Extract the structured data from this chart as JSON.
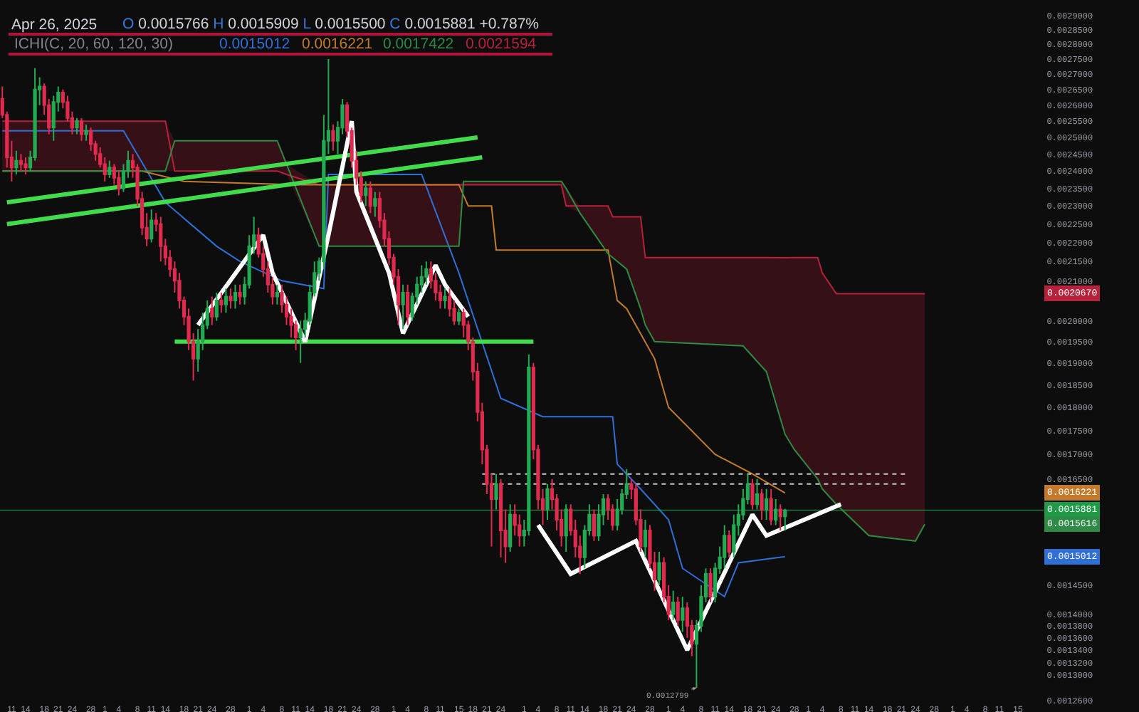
{
  "chart_data": {
    "type": "candlestick",
    "title": "Apr 26, 2025",
    "subtitle": "O 0.0015766 H 0.0015909 L 0.0015500 C 0.0015881 +0.787%",
    "legend_title": "ICHI(C, 20, 60, 120, 30)",
    "annotations": [
      "0.0015012",
      "0.0016221",
      "0.0017422",
      "0.0021594",
      {
        "text": "0.0012799",
        "x": "2025-04-07",
        "y": 0.0012799
      },
      "0.0015012",
      "0.0016221",
      "0.0015616",
      "0.0020670"
    ],
    "log": true,
    "xlim": [
      "2024-11-08T12:00",
      "2025-06-20T12:00"
    ],
    "ylim": [
      0.00126,
      0.002955
    ],
    "yticks": [
      {
        "value": 0.0029,
        "label": "0.0029000"
      },
      {
        "value": 0.00285,
        "label": "0.0028500"
      },
      {
        "value": 0.0028,
        "label": "0.0028000"
      },
      {
        "value": 0.00275,
        "label": "0.0027500"
      },
      {
        "value": 0.0027,
        "label": "0.0027000"
      },
      {
        "value": 0.00265,
        "label": "0.0026500"
      },
      {
        "value": 0.0026,
        "label": "0.0026000"
      },
      {
        "value": 0.00255,
        "label": "0.0025500"
      },
      {
        "value": 0.0025,
        "label": "0.0025000"
      },
      {
        "value": 0.00245,
        "label": "0.0024500"
      },
      {
        "value": 0.0024,
        "label": "0.0024000"
      },
      {
        "value": 0.00235,
        "label": "0.0023500"
      },
      {
        "value": 0.0023,
        "label": "0.0023000"
      },
      {
        "value": 0.00225,
        "label": "0.0022500"
      },
      {
        "value": 0.0022,
        "label": "0.0022000"
      },
      {
        "value": 0.00215,
        "label": "0.0021500"
      },
      {
        "value": 0.0021,
        "label": "0.0021000"
      },
      {
        "value": 0.002,
        "label": "0.0020000"
      },
      {
        "value": 0.00195,
        "label": "0.0019500"
      },
      {
        "value": 0.0019,
        "label": "0.0019000"
      },
      {
        "value": 0.00185,
        "label": "0.0018500"
      },
      {
        "value": 0.0018,
        "label": "0.0018000"
      },
      {
        "value": 0.00175,
        "label": "0.0017500"
      },
      {
        "value": 0.0017,
        "label": "0.0017000"
      },
      {
        "value": 0.00165,
        "label": "0.0016500"
      },
      {
        "value": 0.00145,
        "label": "0.0014500"
      },
      {
        "value": 0.0014,
        "label": "0.0014000"
      },
      {
        "value": 0.00138,
        "label": "0.0013800"
      },
      {
        "value": 0.00136,
        "label": "0.0013600"
      },
      {
        "value": 0.00134,
        "label": "0.0013400"
      },
      {
        "value": 0.00132,
        "label": "0.0013200"
      },
      {
        "value": 0.0013,
        "label": "0.0013000"
      },
      {
        "value": 0.00126,
        "label": "0.0012600"
      }
    ],
    "xticks": [
      {
        "value": "2024-11-11",
        "label": "11"
      },
      {
        "value": "2024-11-14",
        "label": "14"
      },
      {
        "value": "2024-11-18",
        "label": "18"
      },
      {
        "value": "2024-11-21",
        "label": "21"
      },
      {
        "value": "2024-11-24",
        "label": "24"
      },
      {
        "value": "2024-11-28",
        "label": "28"
      },
      {
        "value": "2024-12-01",
        "label": "1"
      },
      {
        "value": "2024-12-04",
        "label": "4"
      },
      {
        "value": "2024-12-08",
        "label": "8"
      },
      {
        "value": "2024-12-11",
        "label": "11"
      },
      {
        "value": "2024-12-14",
        "label": "14"
      },
      {
        "value": "2024-12-18",
        "label": "18"
      },
      {
        "value": "2024-12-21",
        "label": "21"
      },
      {
        "value": "2024-12-24",
        "label": "24"
      },
      {
        "value": "2024-12-28",
        "label": "28"
      },
      {
        "value": "2025-01-01",
        "label": "1"
      },
      {
        "value": "2025-01-04",
        "label": "4"
      },
      {
        "value": "2025-01-08",
        "label": "8"
      },
      {
        "value": "2025-01-11",
        "label": "11"
      },
      {
        "value": "2025-01-14",
        "label": "14"
      },
      {
        "value": "2025-01-18",
        "label": "18"
      },
      {
        "value": "2025-01-21",
        "label": "21"
      },
      {
        "value": "2025-01-24",
        "label": "24"
      },
      {
        "value": "2025-01-28",
        "label": "28"
      },
      {
        "value": "2025-02-01",
        "label": "1"
      },
      {
        "value": "2025-02-04",
        "label": "4"
      },
      {
        "value": "2025-02-08",
        "label": "8"
      },
      {
        "value": "2025-02-11",
        "label": "11"
      },
      {
        "value": "2025-02-15",
        "label": "15"
      },
      {
        "value": "2025-02-18",
        "label": "18"
      },
      {
        "value": "2025-02-21",
        "label": "21"
      },
      {
        "value": "2025-02-24",
        "label": "24"
      },
      {
        "value": "2025-03-01",
        "label": "1"
      },
      {
        "value": "2025-03-04",
        "label": "4"
      },
      {
        "value": "2025-03-08",
        "label": "8"
      },
      {
        "value": "2025-03-11",
        "label": "11"
      },
      {
        "value": "2025-03-14",
        "label": "14"
      },
      {
        "value": "2025-03-18",
        "label": "18"
      },
      {
        "value": "2025-03-21",
        "label": "21"
      },
      {
        "value": "2025-03-24",
        "label": "24"
      },
      {
        "value": "2025-03-28",
        "label": "28"
      },
      {
        "value": "2025-04-01",
        "label": "1"
      },
      {
        "value": "2025-04-04",
        "label": "4"
      },
      {
        "value": "2025-04-08",
        "label": "8"
      },
      {
        "value": "2025-04-11",
        "label": "11"
      },
      {
        "value": "2025-04-14",
        "label": "14"
      },
      {
        "value": "2025-04-18",
        "label": "18"
      },
      {
        "value": "2025-04-21",
        "label": "21"
      },
      {
        "value": "2025-04-24",
        "label": "24"
      },
      {
        "value": "2025-04-28",
        "label": "28"
      },
      {
        "value": "2025-05-01",
        "label": "1"
      },
      {
        "value": "2025-05-04",
        "label": "4"
      },
      {
        "value": "2025-05-08",
        "label": "8"
      },
      {
        "value": "2025-05-11",
        "label": "11"
      },
      {
        "value": "2025-05-14",
        "label": "14"
      },
      {
        "value": "2025-05-18",
        "label": "18"
      },
      {
        "value": "2025-05-21",
        "label": "21"
      },
      {
        "value": "2025-05-24",
        "label": "24"
      },
      {
        "value": "2025-05-28",
        "label": "28"
      },
      {
        "value": "2025-06-01",
        "label": "1"
      },
      {
        "value": "2025-06-04",
        "label": "4"
      },
      {
        "value": "2025-06-08",
        "label": "8"
      },
      {
        "value": "2025-06-11",
        "label": "11"
      },
      {
        "value": "2025-06-15",
        "label": "15"
      }
    ],
    "x": [
      "2024-11-09",
      "2024-11-10",
      "2024-11-11",
      "2024-11-12",
      "2024-11-13",
      "2024-11-14",
      "2024-11-15",
      "2024-11-16",
      "2024-11-17",
      "2024-11-18",
      "2024-11-19",
      "2024-11-20",
      "2024-11-21",
      "2024-11-22",
      "2024-11-23",
      "2024-11-24",
      "2024-11-25",
      "2024-11-26",
      "2024-11-27",
      "2024-11-28",
      "2024-11-29",
      "2024-11-30",
      "2024-12-01",
      "2024-12-02",
      "2024-12-03",
      "2024-12-04",
      "2024-12-05",
      "2024-12-06",
      "2024-12-07",
      "2024-12-08",
      "2024-12-09",
      "2024-12-10",
      "2024-12-11",
      "2024-12-12",
      "2024-12-13",
      "2024-12-14",
      "2024-12-15",
      "2024-12-16",
      "2024-12-17",
      "2024-12-18",
      "2024-12-19",
      "2024-12-20",
      "2024-12-21",
      "2024-12-22",
      "2024-12-23",
      "2024-12-24",
      "2024-12-25",
      "2024-12-26",
      "2024-12-27",
      "2024-12-28",
      "2024-12-29",
      "2024-12-30",
      "2024-12-31",
      "2025-01-01",
      "2025-01-02",
      "2025-01-03",
      "2025-01-04",
      "2025-01-05",
      "2025-01-06",
      "2025-01-07",
      "2025-01-08",
      "2025-01-09",
      "2025-01-10",
      "2025-01-11",
      "2025-01-12",
      "2025-01-13",
      "2025-01-14",
      "2025-01-15",
      "2025-01-16",
      "2025-01-17",
      "2025-01-18",
      "2025-01-19",
      "2025-01-20",
      "2025-01-21",
      "2025-01-22",
      "2025-01-23",
      "2025-01-24",
      "2025-01-25",
      "2025-01-26",
      "2025-01-27",
      "2025-01-28",
      "2025-01-29",
      "2025-01-30",
      "2025-01-31",
      "2025-02-01",
      "2025-02-02",
      "2025-02-03",
      "2025-02-04",
      "2025-02-05",
      "2025-02-06",
      "2025-02-07",
      "2025-02-08",
      "2025-02-09",
      "2025-02-10",
      "2025-02-11",
      "2025-02-12",
      "2025-02-13",
      "2025-02-14",
      "2025-02-15",
      "2025-02-16",
      "2025-02-17",
      "2025-02-18",
      "2025-02-19",
      "2025-02-20",
      "2025-02-21",
      "2025-02-22",
      "2025-02-23",
      "2025-02-24",
      "2025-02-25",
      "2025-02-26",
      "2025-02-27",
      "2025-02-28",
      "2025-03-01",
      "2025-03-02",
      "2025-03-03",
      "2025-03-04",
      "2025-03-05",
      "2025-03-06",
      "2025-03-07",
      "2025-03-08",
      "2025-03-09",
      "2025-03-10",
      "2025-03-11",
      "2025-03-12",
      "2025-03-13",
      "2025-03-14",
      "2025-03-15",
      "2025-03-16",
      "2025-03-17",
      "2025-03-18",
      "2025-03-19",
      "2025-03-20",
      "2025-03-21",
      "2025-03-22",
      "2025-03-23",
      "2025-03-24",
      "2025-03-25",
      "2025-03-26",
      "2025-03-27",
      "2025-03-28",
      "2025-03-29",
      "2025-03-30",
      "2025-03-31",
      "2025-04-01",
      "2025-04-02",
      "2025-04-03",
      "2025-04-04",
      "2025-04-05",
      "2025-04-06",
      "2025-04-07",
      "2025-04-08",
      "2025-04-09",
      "2025-04-10",
      "2025-04-11",
      "2025-04-12",
      "2025-04-13",
      "2025-04-14",
      "2025-04-15",
      "2025-04-16",
      "2025-04-17",
      "2025-04-18",
      "2025-04-19",
      "2025-04-20",
      "2025-04-21",
      "2025-04-22",
      "2025-04-23",
      "2025-04-24",
      "2025-04-25",
      "2025-04-26"
    ],
    "ohlc": [
      [
        0.00262,
        0.00266,
        0.00256,
        0.00257
      ],
      [
        0.00257,
        0.00258,
        0.00241,
        0.00244
      ],
      [
        0.00244,
        0.00249,
        0.00237,
        0.00241
      ],
      [
        0.00241,
        0.00246,
        0.00239,
        0.00243
      ],
      [
        0.00243,
        0.00245,
        0.0024,
        0.00242
      ],
      [
        0.00242,
        0.00244,
        0.00239,
        0.00241
      ],
      [
        0.00241,
        0.00246,
        0.0024,
        0.00244
      ],
      [
        0.00244,
        0.00272,
        0.00243,
        0.00265
      ],
      [
        0.00265,
        0.00269,
        0.0026,
        0.00266
      ],
      [
        0.00266,
        0.00267,
        0.00257,
        0.0026
      ],
      [
        0.0026,
        0.00262,
        0.00251,
        0.00253
      ],
      [
        0.00253,
        0.00263,
        0.00249,
        0.00261
      ],
      [
        0.00261,
        0.00266,
        0.00258,
        0.00264
      ],
      [
        0.00264,
        0.00265,
        0.00259,
        0.00261
      ],
      [
        0.00261,
        0.00263,
        0.00255,
        0.00256
      ],
      [
        0.00256,
        0.00258,
        0.00251,
        0.00253
      ],
      [
        0.00253,
        0.00256,
        0.00251,
        0.00255
      ],
      [
        0.00255,
        0.00256,
        0.00249,
        0.00251
      ],
      [
        0.00251,
        0.00254,
        0.00249,
        0.00252
      ],
      [
        0.00252,
        0.00253,
        0.00246,
        0.00248
      ],
      [
        0.00248,
        0.00249,
        0.00243,
        0.00245
      ],
      [
        0.00245,
        0.00247,
        0.00241,
        0.00242
      ],
      [
        0.00242,
        0.00244,
        0.00237,
        0.00239
      ],
      [
        0.00239,
        0.00243,
        0.00238,
        0.00241
      ],
      [
        0.00241,
        0.00242,
        0.00236,
        0.00238
      ],
      [
        0.00238,
        0.0024,
        0.00233,
        0.00235
      ],
      [
        0.00235,
        0.00242,
        0.00234,
        0.0024
      ],
      [
        0.0024,
        0.00246,
        0.00238,
        0.00243
      ],
      [
        0.00243,
        0.00245,
        0.00238,
        0.00241
      ],
      [
        0.00241,
        0.00242,
        0.0023,
        0.00232
      ],
      [
        0.00232,
        0.00234,
        0.00222,
        0.00224
      ],
      [
        0.00224,
        0.00228,
        0.00219,
        0.00221
      ],
      [
        0.00221,
        0.00229,
        0.0022,
        0.00226
      ],
      [
        0.00226,
        0.00228,
        0.00223,
        0.00225
      ],
      [
        0.00225,
        0.00227,
        0.00215,
        0.00219
      ],
      [
        0.00219,
        0.00221,
        0.00214,
        0.00216
      ],
      [
        0.00216,
        0.00218,
        0.00211,
        0.00213
      ],
      [
        0.00213,
        0.00215,
        0.00207,
        0.0021
      ],
      [
        0.0021,
        0.00212,
        0.00203,
        0.00205
      ],
      [
        0.00205,
        0.00206,
        0.00199,
        0.00201
      ],
      [
        0.00201,
        0.00203,
        0.00193,
        0.00195
      ],
      [
        0.00195,
        0.00197,
        0.00186,
        0.00191
      ],
      [
        0.00191,
        0.00198,
        0.00188,
        0.00195
      ],
      [
        0.00195,
        0.00202,
        0.00193,
        0.00199
      ],
      [
        0.00199,
        0.00205,
        0.00198,
        0.00203
      ],
      [
        0.00203,
        0.00206,
        0.00199,
        0.00201
      ],
      [
        0.00201,
        0.00207,
        0.002,
        0.00205
      ],
      [
        0.00205,
        0.00207,
        0.00202,
        0.00204
      ],
      [
        0.00204,
        0.00208,
        0.00202,
        0.00206
      ],
      [
        0.00206,
        0.00208,
        0.00203,
        0.00205
      ],
      [
        0.00205,
        0.00209,
        0.00203,
        0.00207
      ],
      [
        0.00207,
        0.00209,
        0.00204,
        0.00206
      ],
      [
        0.00206,
        0.00211,
        0.00204,
        0.00209
      ],
      [
        0.00209,
        0.00222,
        0.00208,
        0.00219
      ],
      [
        0.00219,
        0.00227,
        0.00217,
        0.00222
      ],
      [
        0.00222,
        0.00224,
        0.00216,
        0.00217
      ],
      [
        0.00217,
        0.00219,
        0.00211,
        0.00213
      ],
      [
        0.00213,
        0.00215,
        0.00207,
        0.00209
      ],
      [
        0.00209,
        0.00211,
        0.00204,
        0.00206
      ],
      [
        0.00206,
        0.00209,
        0.00204,
        0.00207
      ],
      [
        0.00207,
        0.00209,
        0.00202,
        0.00204
      ],
      [
        0.00204,
        0.00206,
        0.00199,
        0.00201
      ],
      [
        0.00201,
        0.00203,
        0.00196,
        0.00199
      ],
      [
        0.00199,
        0.002,
        0.00193,
        0.00196
      ],
      [
        0.00196,
        0.002,
        0.0019,
        0.00198
      ],
      [
        0.00198,
        0.00202,
        0.00196,
        0.002
      ],
      [
        0.002,
        0.00209,
        0.00199,
        0.00207
      ],
      [
        0.00207,
        0.00215,
        0.00206,
        0.00212
      ],
      [
        0.00212,
        0.00216,
        0.0021,
        0.00215
      ],
      [
        0.00215,
        0.00257,
        0.00213,
        0.00249
      ],
      [
        0.00249,
        0.00275,
        0.00245,
        0.00252
      ],
      [
        0.00252,
        0.00254,
        0.00246,
        0.00249
      ],
      [
        0.00249,
        0.00255,
        0.00245,
        0.00253
      ],
      [
        0.00253,
        0.00262,
        0.00251,
        0.0026
      ],
      [
        0.0026,
        0.00261,
        0.0025,
        0.00252
      ],
      [
        0.00252,
        0.00253,
        0.00241,
        0.00243
      ],
      [
        0.00243,
        0.00246,
        0.00236,
        0.00238
      ],
      [
        0.00238,
        0.0024,
        0.00231,
        0.00233
      ],
      [
        0.00233,
        0.00237,
        0.0023,
        0.00235
      ],
      [
        0.00235,
        0.00237,
        0.00228,
        0.0023
      ],
      [
        0.0023,
        0.00234,
        0.00227,
        0.00232
      ],
      [
        0.00232,
        0.00234,
        0.00224,
        0.00226
      ],
      [
        0.00226,
        0.00228,
        0.00219,
        0.00221
      ],
      [
        0.00221,
        0.00223,
        0.00214,
        0.00216
      ],
      [
        0.00216,
        0.00217,
        0.00209,
        0.00211
      ],
      [
        0.00211,
        0.00213,
        0.00199,
        0.00204
      ],
      [
        0.00204,
        0.00209,
        0.00198,
        0.00207
      ],
      [
        0.00207,
        0.00209,
        0.00199,
        0.00201
      ],
      [
        0.00201,
        0.00207,
        0.002,
        0.00206
      ],
      [
        0.00206,
        0.00211,
        0.00204,
        0.00209
      ],
      [
        0.00209,
        0.00214,
        0.00207,
        0.00211
      ],
      [
        0.00211,
        0.00215,
        0.00209,
        0.00213
      ],
      [
        0.00213,
        0.00215,
        0.00208,
        0.0021
      ],
      [
        0.0021,
        0.00212,
        0.00205,
        0.00207
      ],
      [
        0.00207,
        0.00209,
        0.00203,
        0.00205
      ],
      [
        0.00205,
        0.00208,
        0.00203,
        0.00206
      ],
      [
        0.00206,
        0.00208,
        0.00201,
        0.00203
      ],
      [
        0.00203,
        0.00205,
        0.00199,
        0.002
      ],
      [
        0.002,
        0.00203,
        0.00199,
        0.00202
      ],
      [
        0.00202,
        0.00203,
        0.00196,
        0.00199
      ],
      [
        0.00199,
        0.002,
        0.00193,
        0.00195
      ],
      [
        0.00195,
        0.00196,
        0.00186,
        0.00188
      ],
      [
        0.00188,
        0.0019,
        0.00177,
        0.00179
      ],
      [
        0.00179,
        0.00181,
        0.00168,
        0.00171
      ],
      [
        0.00171,
        0.00172,
        0.00162,
        0.00164
      ],
      [
        0.00164,
        0.00166,
        0.00152,
        0.00161
      ],
      [
        0.00161,
        0.00166,
        0.00159,
        0.00164
      ],
      [
        0.00164,
        0.00165,
        0.0015,
        0.00155
      ],
      [
        0.00155,
        0.00159,
        0.00149,
        0.00152
      ],
      [
        0.00152,
        0.0016,
        0.00151,
        0.00158
      ],
      [
        0.00158,
        0.0016,
        0.00154,
        0.00156
      ],
      [
        0.00156,
        0.00158,
        0.00152,
        0.00154
      ],
      [
        0.00154,
        0.00157,
        0.00152,
        0.00155
      ],
      [
        0.00155,
        0.00192,
        0.00154,
        0.00189
      ],
      [
        0.00189,
        0.0019,
        0.00169,
        0.00171
      ],
      [
        0.00171,
        0.00172,
        0.00159,
        0.00161
      ],
      [
        0.00161,
        0.00163,
        0.00156,
        0.00159
      ],
      [
        0.00159,
        0.00164,
        0.00157,
        0.00163
      ],
      [
        0.00163,
        0.00165,
        0.00159,
        0.00161
      ],
      [
        0.00161,
        0.00162,
        0.00155,
        0.00157
      ],
      [
        0.00157,
        0.00159,
        0.00152,
        0.00154
      ],
      [
        0.00154,
        0.0016,
        0.00151,
        0.00159
      ],
      [
        0.00159,
        0.0016,
        0.00154,
        0.00155
      ],
      [
        0.00155,
        0.00157,
        0.0015,
        0.00152
      ],
      [
        0.00152,
        0.00154,
        0.00147,
        0.0015
      ],
      [
        0.0015,
        0.00156,
        0.00148,
        0.00155
      ],
      [
        0.00155,
        0.0016,
        0.00154,
        0.00158
      ],
      [
        0.00158,
        0.00159,
        0.00153,
        0.00154
      ],
      [
        0.00154,
        0.0016,
        0.00153,
        0.00158
      ],
      [
        0.00158,
        0.00162,
        0.00156,
        0.00161
      ],
      [
        0.00161,
        0.00162,
        0.00157,
        0.00159
      ],
      [
        0.00159,
        0.0016,
        0.00155,
        0.00156
      ],
      [
        0.00156,
        0.00161,
        0.00155,
        0.00159
      ],
      [
        0.00159,
        0.00163,
        0.00158,
        0.00162
      ],
      [
        0.00162,
        0.00167,
        0.00161,
        0.00164
      ],
      [
        0.00164,
        0.00165,
        0.00161,
        0.00163
      ],
      [
        0.00163,
        0.00164,
        0.00156,
        0.00157
      ],
      [
        0.00157,
        0.00159,
        0.00151,
        0.00152
      ],
      [
        0.00152,
        0.00157,
        0.0015,
        0.00155
      ],
      [
        0.00155,
        0.00156,
        0.00148,
        0.00149
      ],
      [
        0.00149,
        0.00151,
        0.00144,
        0.00146
      ],
      [
        0.00146,
        0.00151,
        0.00145,
        0.00149
      ],
      [
        0.00149,
        0.0015,
        0.00142,
        0.00143
      ],
      [
        0.00143,
        0.00145,
        0.00139,
        0.0014
      ],
      [
        0.0014,
        0.00144,
        0.00139,
        0.00142
      ],
      [
        0.00142,
        0.00143,
        0.00138,
        0.00139
      ],
      [
        0.00139,
        0.00143,
        0.00137,
        0.00141
      ],
      [
        0.00141,
        0.00142,
        0.00136,
        0.00138
      ],
      [
        0.00138,
        0.00139,
        0.00133,
        0.00135
      ],
      [
        0.00135,
        0.00139,
        0.0012799,
        0.00138
      ],
      [
        0.00138,
        0.00145,
        0.00137,
        0.00143
      ],
      [
        0.00143,
        0.00148,
        0.00142,
        0.00147
      ],
      [
        0.00147,
        0.00148,
        0.00142,
        0.00143
      ],
      [
        0.00143,
        0.00149,
        0.00142,
        0.00148
      ],
      [
        0.00148,
        0.00152,
        0.00147,
        0.0015
      ],
      [
        0.0015,
        0.00156,
        0.00148,
        0.00154
      ],
      [
        0.00154,
        0.00155,
        0.0015,
        0.00151
      ],
      [
        0.00151,
        0.00158,
        0.0015,
        0.00156
      ],
      [
        0.00156,
        0.0016,
        0.00154,
        0.00158
      ],
      [
        0.00158,
        0.00163,
        0.00157,
        0.00161
      ],
      [
        0.00161,
        0.00166,
        0.0016,
        0.00164
      ],
      [
        0.00164,
        0.00165,
        0.00159,
        0.0016
      ],
      [
        0.0016,
        0.00165,
        0.00159,
        0.00162
      ],
      [
        0.00162,
        0.00163,
        0.00157,
        0.00159
      ],
      [
        0.00159,
        0.00163,
        0.00157,
        0.00161
      ],
      [
        0.00161,
        0.00163,
        0.00156,
        0.00157
      ],
      [
        0.00157,
        0.00161,
        0.00156,
        0.00159
      ],
      [
        0.00159,
        0.0016,
        0.00155,
        0.0015766
      ],
      [
        0.0015766,
        0.0015909,
        0.00155,
        0.0015881
      ]
    ],
    "colors": [
      "#e22a4f",
      "#e22a4f",
      "#e22a4f",
      "#22ab52",
      "#e22a4f",
      "#e22a4f",
      "#22ab52",
      "#22ab52",
      "#22ab52",
      "#e22a4f",
      "#e22a4f",
      "#22ab52",
      "#22ab52",
      "#e22a4f",
      "#e22a4f",
      "#e22a4f",
      "#22ab52",
      "#e22a4f",
      "#22ab52",
      "#e22a4f",
      "#e22a4f",
      "#e22a4f",
      "#e22a4f",
      "#22ab52",
      "#e22a4f",
      "#e22a4f",
      "#22ab52",
      "#22ab52",
      "#e22a4f",
      "#e22a4f",
      "#e22a4f",
      "#e22a4f",
      "#22ab52",
      "#e22a4f",
      "#e22a4f",
      "#e22a4f",
      "#e22a4f",
      "#e22a4f",
      "#e22a4f",
      "#e22a4f",
      "#e22a4f",
      "#e22a4f",
      "#22ab52",
      "#22ab52",
      "#22ab52",
      "#e22a4f",
      "#22ab52",
      "#e22a4f",
      "#22ab52",
      "#e22a4f",
      "#22ab52",
      "#e22a4f",
      "#22ab52",
      "#22ab52",
      "#22ab52",
      "#e22a4f",
      "#e22a4f",
      "#e22a4f",
      "#e22a4f",
      "#22ab52",
      "#e22a4f",
      "#e22a4f",
      "#e22a4f",
      "#e22a4f",
      "#22ab52",
      "#22ab52",
      "#22ab52",
      "#22ab52",
      "#22ab52",
      "#22ab52",
      "#22ab52",
      "#e22a4f",
      "#22ab52",
      "#22ab52",
      "#e22a4f",
      "#e22a4f",
      "#e22a4f",
      "#e22a4f",
      "#22ab52",
      "#e22a4f",
      "#22ab52",
      "#e22a4f",
      "#e22a4f",
      "#e22a4f",
      "#e22a4f",
      "#e22a4f",
      "#22ab52",
      "#e22a4f",
      "#22ab52",
      "#22ab52",
      "#22ab52",
      "#22ab52",
      "#e22a4f",
      "#e22a4f",
      "#e22a4f",
      "#22ab52",
      "#e22a4f",
      "#e22a4f",
      "#22ab52",
      "#e22a4f",
      "#e22a4f",
      "#e22a4f",
      "#e22a4f",
      "#e22a4f",
      "#e22a4f",
      "#e22a4f",
      "#22ab52",
      "#e22a4f",
      "#e22a4f",
      "#22ab52",
      "#e22a4f",
      "#e22a4f",
      "#22ab52",
      "#22ab52",
      "#e22a4f",
      "#e22a4f",
      "#e22a4f",
      "#22ab52",
      "#e22a4f",
      "#e22a4f",
      "#e22a4f",
      "#22ab52",
      "#e22a4f",
      "#e22a4f",
      "#e22a4f",
      "#22ab52",
      "#22ab52",
      "#e22a4f",
      "#22ab52",
      "#22ab52",
      "#e22a4f",
      "#e22a4f",
      "#22ab52",
      "#22ab52",
      "#22ab52",
      "#e22a4f",
      "#e22a4f",
      "#e22a4f",
      "#22ab52",
      "#e22a4f",
      "#e22a4f",
      "#22ab52",
      "#e22a4f",
      "#e22a4f",
      "#22ab52",
      "#e22a4f",
      "#22ab52",
      "#e22a4f",
      "#e22a4f",
      "#22ab52",
      "#22ab52",
      "#22ab52",
      "#e22a4f",
      "#22ab52",
      "#22ab52",
      "#22ab52",
      "#e22a4f",
      "#22ab52",
      "#22ab52",
      "#22ab52",
      "#22ab52",
      "#e22a4f",
      "#22ab52",
      "#e22a4f",
      "#22ab52",
      "#e22a4f",
      "#22ab52",
      "#e22a4f",
      "#22ab52"
    ],
    "ref_lines": [
      {
        "axis": "y",
        "value": 0.0015881,
        "label": "0.0015881",
        "color": "#1f9a46"
      }
    ],
    "series": [
      {
        "type": "line",
        "color": "#2f6fd6",
        "x": [
          "2024-11-09",
          "2024-12-05",
          "2024-12-14",
          "2024-12-25",
          "2024-12-30",
          "2025-01-08",
          "2025-01-17",
          "2025-01-18",
          "2025-02-07",
          "2025-02-15",
          "2025-02-24",
          "2025-03-05",
          "2025-03-20",
          "2025-03-21",
          "2025-03-26",
          "2025-04-01",
          "2025-04-04",
          "2025-04-13",
          "2025-04-16",
          "2025-04-26"
        ],
        "values": [
          0.00252,
          0.00252,
          0.00231,
          0.00219,
          0.00215,
          0.0021,
          0.00208,
          0.00239,
          0.00239,
          0.00212,
          0.00182,
          0.00178,
          0.00178,
          0.00168,
          0.00163,
          0.00157,
          0.00148,
          0.00143,
          0.00149,
          0.0015012
        ]
      },
      {
        "type": "line",
        "color": "#c47a2c",
        "x": [
          "2024-11-09",
          "2024-12-09",
          "2024-12-18",
          "2025-01-11",
          "2025-02-15",
          "2025-02-17",
          "2025-02-22",
          "2025-02-23",
          "2025-03-19",
          "2025-03-21",
          "2025-03-23",
          "2025-03-29",
          "2025-04-01",
          "2025-04-11",
          "2025-04-19",
          "2025-04-26"
        ],
        "values": [
          0.0024,
          0.0024,
          0.00237,
          0.00236,
          0.00236,
          0.0023,
          0.0023,
          0.00218,
          0.00218,
          0.00205,
          0.00203,
          0.00191,
          0.0018,
          0.0017,
          0.00166,
          0.0016221
        ]
      },
      {
        "type": "line",
        "color": "#2e8b45",
        "x": [
          "2024-11-09",
          "2024-12-14",
          "2024-12-16",
          "2025-01-07",
          "2025-01-09",
          "2025-01-16",
          "2025-02-15",
          "2025-02-16",
          "2025-03-09",
          "2025-03-10",
          "2025-03-13",
          "2025-03-19",
          "2025-03-20",
          "2025-03-23",
          "2025-03-26",
          "2025-03-27",
          "2025-03-29",
          "2025-04-17",
          "2025-04-22",
          "2025-04-26",
          "2025-04-28",
          "2025-05-03",
          "2025-05-04",
          "2025-05-07",
          "2025-05-14",
          "2025-05-24",
          "2025-05-26"
        ],
        "values": [
          0.0024,
          0.0024,
          0.00249,
          0.00249,
          0.00242,
          0.00219,
          0.00219,
          0.00237,
          0.00237,
          0.00235,
          0.00228,
          0.00217,
          0.00216,
          0.00213,
          0.00203,
          0.00199,
          0.00195,
          0.00194,
          0.00188,
          0.0017422,
          0.00171,
          0.00165,
          0.00163,
          0.0016,
          0.00154,
          0.00153,
          0.0015616
        ]
      },
      {
        "type": "line",
        "color": "#b8213c",
        "x": [
          "2024-11-09",
          "2024-12-14",
          "2024-12-16",
          "2025-01-07",
          "2025-01-09",
          "2025-01-16",
          "2025-02-15",
          "2025-02-16",
          "2025-03-09",
          "2025-03-10",
          "2025-03-13",
          "2025-03-19",
          "2025-03-20",
          "2025-03-23",
          "2025-03-26",
          "2025-03-27",
          "2025-03-29",
          "2025-04-17",
          "2025-04-22",
          "2025-04-26",
          "2025-04-28",
          "2025-05-03",
          "2025-05-04",
          "2025-05-07",
          "2025-05-14",
          "2025-05-24",
          "2025-05-26"
        ],
        "values": [
          0.00255,
          0.00255,
          0.0024,
          0.0024,
          0.00239,
          0.00236,
          0.00236,
          0.00236,
          0.00236,
          0.0023,
          0.0023,
          0.0023,
          0.00227,
          0.00227,
          0.00227,
          0.00216,
          0.00216,
          0.00216,
          0.00216,
          0.0021594,
          0.00216,
          0.00216,
          0.00212,
          0.002067,
          0.002067,
          0.002067,
          0.002067
        ],
        "lower": [
          0.0024,
          0.0024,
          0.0024,
          0.0024,
          0.00239,
          0.00219,
          0.00219,
          0.00236,
          0.00236,
          0.0023,
          0.00228,
          0.00217,
          0.00216,
          0.00213,
          0.00203,
          0.00199,
          0.00195,
          0.00194,
          0.00188,
          0.0017422,
          0.00171,
          0.00165,
          0.00163,
          0.0016,
          0.00154,
          0.00153,
          0.0015616
        ],
        "upper": [
          0.00255,
          0.00255,
          0.00249,
          0.00249,
          0.00242,
          0.00236,
          0.00236,
          0.00237,
          0.00237,
          0.00235,
          0.0023,
          0.0023,
          0.00227,
          0.00227,
          0.00227,
          0.00216,
          0.00216,
          0.00216,
          0.00216,
          0.0021594,
          0.00216,
          0.00216,
          0.00212,
          0.002067,
          0.002067,
          0.002067,
          0.002067
        ]
      },
      {
        "type": "line",
        "color": "#41dc4b",
        "x": [
          "2024-11-10",
          "2025-02-19"
        ],
        "values": [
          0.00231,
          0.0025
        ]
      },
      {
        "type": "line",
        "color": "#41dc4b",
        "x": [
          "2024-11-10",
          "2025-02-20"
        ],
        "values": [
          0.00225,
          0.00244
        ]
      },
      {
        "type": "line",
        "color": "#41dc4b",
        "x": [
          "2024-12-16",
          "2025-03-03"
        ],
        "values": [
          0.00195,
          0.00195
        ]
      },
      {
        "type": "line",
        "color": "#ffffff",
        "x": [
          "2024-12-21",
          "2025-01-04",
          "2025-01-06",
          "2025-01-13",
          "2025-01-18",
          "2025-01-23",
          "2025-01-24",
          "2025-01-31",
          "2025-02-03",
          "2025-02-10",
          "2025-02-12",
          "2025-02-17"
        ],
        "values": [
          0.00199,
          0.00222,
          0.00212,
          0.00195,
          0.00222,
          0.00255,
          0.00234,
          0.00212,
          0.00197,
          0.00214,
          0.00209,
          0.00201
        ]
      },
      {
        "type": "line",
        "color": "#ffffff",
        "x": [
          "2025-03-04",
          "2025-03-11",
          "2025-03-25",
          "2025-04-05",
          "2025-04-19",
          "2025-04-22",
          "2025-05-08"
        ],
        "values": [
          0.00156,
          0.00147,
          0.00153,
          0.00134,
          0.00158,
          0.00154,
          0.0016
        ]
      },
      {
        "type": "line",
        "color": "#c8c8c8",
        "line_style": "dotted",
        "x": [
          "2025-02-20",
          "2025-05-22"
        ],
        "values": [
          0.00166,
          0.00166
        ]
      },
      {
        "type": "line",
        "color": "#c8c8c8",
        "line_style": "dotted",
        "x": [
          "2025-02-20",
          "2025-05-22"
        ],
        "values": [
          0.00164,
          0.00164
        ]
      }
    ]
  }
}
